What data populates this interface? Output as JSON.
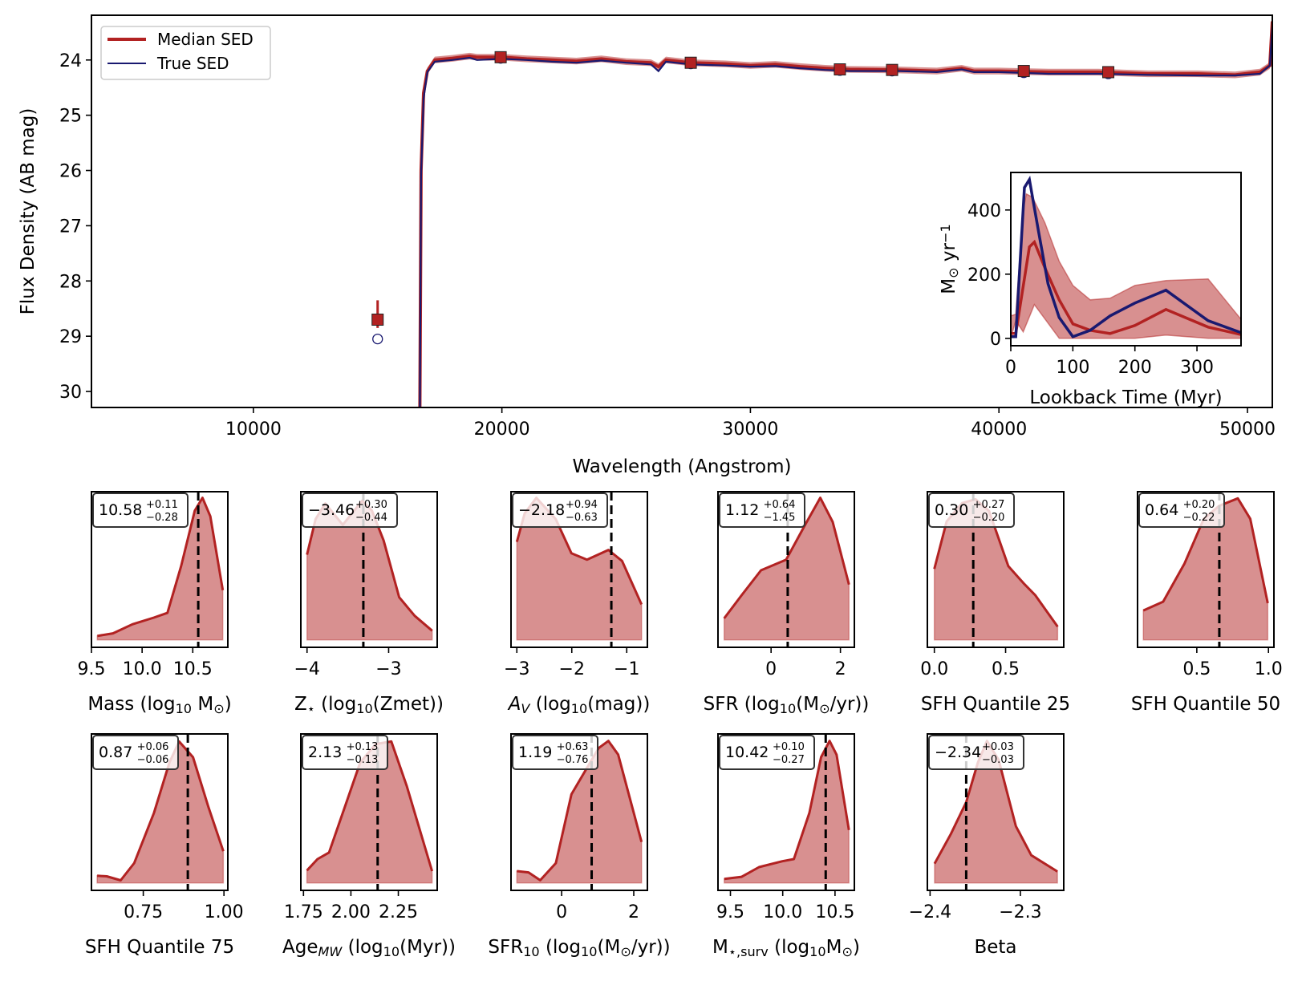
{
  "colors": {
    "median": "#b22222",
    "median_fill": "#b22222",
    "true": "#191970",
    "truth_line": "#000000"
  },
  "chart_data": [
    {
      "type": "line",
      "id": "sed",
      "xlabel": "Wavelength (Angstrom)",
      "ylabel": "Flux Density (AB mag)",
      "xlim": [
        3485,
        51000
      ],
      "ylim": [
        23.19,
        30.29
      ],
      "y_inverted": true,
      "xticks": [
        10000,
        20000,
        30000,
        40000,
        50000
      ],
      "xticklabels": [
        "10000",
        "20000",
        "30000",
        "40000",
        "50000"
      ],
      "yticks": [
        24,
        25,
        26,
        27,
        28,
        29,
        30
      ],
      "yticklabels": [
        "24",
        "25",
        "26",
        "27",
        "28",
        "29",
        "30"
      ],
      "grid": false,
      "legend": {
        "placement": "top-left",
        "entries": [
          "Median SED",
          "True SED"
        ]
      },
      "series": [
        {
          "name": "Median SED",
          "band_halfwidth": 0.06,
          "x": [
            16700,
            16750,
            16850,
            17000,
            17300,
            18000,
            18700,
            19000,
            20000,
            21000,
            22000,
            23000,
            24000,
            25000,
            26000,
            26300,
            26600,
            27600,
            29000,
            30000,
            31000,
            32000,
            33000,
            34000,
            36000,
            37500,
            38500,
            39000,
            40000,
            42000,
            44000,
            46000,
            48000,
            49500,
            50500,
            50900,
            51000
          ],
          "y": [
            30.3,
            26.0,
            24.6,
            24.2,
            24.0,
            23.97,
            23.93,
            23.95,
            23.95,
            23.98,
            24.0,
            24.02,
            23.98,
            24.03,
            24.05,
            24.12,
            24.0,
            24.05,
            24.07,
            24.1,
            24.08,
            24.12,
            24.15,
            24.17,
            24.18,
            24.2,
            24.15,
            24.2,
            24.2,
            24.22,
            24.22,
            24.25,
            24.25,
            24.27,
            24.22,
            24.1,
            23.3
          ]
        },
        {
          "name": "True SED",
          "x": [
            16700,
            16750,
            16850,
            17000,
            17300,
            18000,
            18700,
            19000,
            20000,
            21000,
            22000,
            23000,
            24000,
            25000,
            26000,
            26300,
            26600,
            27600,
            29000,
            30000,
            31000,
            32000,
            33000,
            34000,
            36000,
            37500,
            38500,
            39000,
            40000,
            42000,
            44000,
            46000,
            48000,
            49500,
            50500,
            50900,
            51000
          ],
          "y": [
            30.3,
            26.1,
            24.7,
            24.22,
            24.03,
            24.0,
            23.96,
            24.0,
            23.98,
            24.0,
            24.03,
            24.05,
            24.01,
            24.05,
            24.08,
            24.2,
            24.03,
            24.08,
            24.1,
            24.12,
            24.11,
            24.15,
            24.18,
            24.2,
            24.2,
            24.22,
            24.17,
            24.22,
            24.22,
            24.25,
            24.25,
            24.27,
            24.28,
            24.28,
            24.25,
            24.1,
            23.4
          ]
        }
      ],
      "photometry_median": [
        {
          "x": 15000,
          "y": 28.7,
          "err_up": 0.35,
          "err_down": 0.15
        },
        {
          "x": 19950,
          "y": 23.95
        },
        {
          "x": 27600,
          "y": 24.05
        },
        {
          "x": 33600,
          "y": 24.17
        },
        {
          "x": 35700,
          "y": 24.18
        },
        {
          "x": 41000,
          "y": 24.2
        },
        {
          "x": 44400,
          "y": 24.22
        }
      ],
      "photometry_true": [
        {
          "x": 15000,
          "y": 29.05
        },
        {
          "x": 19950,
          "y": 23.97
        },
        {
          "x": 27600,
          "y": 24.07
        },
        {
          "x": 33600,
          "y": 24.19
        },
        {
          "x": 35700,
          "y": 24.2
        },
        {
          "x": 41000,
          "y": 24.23
        },
        {
          "x": 44400,
          "y": 24.25
        }
      ]
    },
    {
      "type": "area",
      "id": "sfh-inset",
      "xlabel": "Lookback Time (Myr)",
      "ylabel_parts": [
        {
          "t": "M",
          "s": ""
        },
        {
          "t": "⊙",
          "s": "sub"
        },
        {
          "t": " yr",
          "s": ""
        },
        {
          "t": "−1",
          "s": "sup"
        }
      ],
      "xlim": [
        0,
        371
      ],
      "ylim": [
        -23,
        517
      ],
      "xticks": [
        0,
        100,
        200,
        300
      ],
      "xticklabels": [
        "0",
        "100",
        "200",
        "300"
      ],
      "yticks": [
        0,
        200,
        400
      ],
      "yticklabels": [
        "0",
        "200",
        "400"
      ],
      "band_x": [
        0,
        8,
        20,
        25,
        35,
        55,
        78,
        100,
        128,
        160,
        200,
        250,
        318,
        375
      ],
      "band_upper": [
        70,
        75,
        400,
        450,
        440,
        360,
        240,
        165,
        120,
        125,
        165,
        180,
        185,
        50
      ],
      "band_lower_x": [
        0,
        8,
        20,
        38,
        78,
        160,
        200,
        250,
        318,
        375
      ],
      "band_lower": [
        0,
        55,
        20,
        105,
        0,
        0,
        0,
        10,
        0,
        0
      ],
      "median": {
        "x": [
          0,
          8,
          30,
          38,
          55,
          78,
          100,
          128,
          160,
          200,
          250,
          318,
          375
        ],
        "y": [
          15,
          15,
          285,
          300,
          220,
          120,
          45,
          25,
          15,
          40,
          90,
          35,
          10
        ]
      },
      "true": {
        "x": [
          0,
          8,
          22,
          30,
          45,
          60,
          78,
          100,
          128,
          160,
          200,
          250,
          318,
          375
        ],
        "y": [
          5,
          5,
          470,
          495,
          330,
          170,
          65,
          5,
          25,
          70,
          110,
          150,
          55,
          15
        ]
      }
    },
    {
      "type": "area",
      "id": "mass",
      "xlabel_parts": [
        {
          "t": "Mass (log",
          "s": ""
        },
        {
          "t": "10",
          "s": "sub"
        },
        {
          "t": " M",
          "s": ""
        },
        {
          "t": "⊙",
          "s": "sub"
        },
        {
          "t": ")",
          "s": ""
        }
      ],
      "xlim": [
        9.5,
        10.846
      ],
      "xticks": [
        9.5,
        10.0,
        10.5
      ],
      "xticklabels": [
        "9.5",
        "10.0",
        "10.5"
      ],
      "truth": 10.554,
      "median": "10.58",
      "plus": "+0.11",
      "minus": "−0.28",
      "x": [
        9.558,
        9.712,
        9.904,
        10.115,
        10.25,
        10.385,
        10.52,
        10.596,
        10.673,
        10.796
      ],
      "y": [
        0.028,
        0.046,
        0.11,
        0.157,
        0.19,
        0.52,
        0.91,
        1.0,
        0.87,
        0.35
      ]
    },
    {
      "type": "area",
      "id": "zstar",
      "xlabel_parts": [
        {
          "t": "Z",
          "s": ""
        },
        {
          "t": "⋆",
          "s": "sub"
        },
        {
          "t": "  (log",
          "s": ""
        },
        {
          "t": "10",
          "s": "sub"
        },
        {
          "t": "(Zmet))",
          "s": ""
        }
      ],
      "xlim": [
        -4.076,
        -2.405
      ],
      "xticks": [
        -4,
        -3
      ],
      "xticklabels": [
        "−4",
        "−3"
      ],
      "truth": -3.31,
      "median": "−3.46",
      "plus": "+0.30",
      "minus": "−0.44",
      "x": [
        -4,
        -3.895,
        -3.776,
        -3.562,
        -3.324,
        -3.205,
        -3.062,
        -2.871,
        -2.681,
        -2.467
      ],
      "y": [
        0.6,
        0.85,
        0.96,
        0.81,
        0.98,
        0.91,
        0.7,
        0.3,
        0.17,
        0.065
      ]
    },
    {
      "type": "area",
      "id": "av",
      "xlabel_parts": [
        {
          "t": "A",
          "s": "i"
        },
        {
          "t": "V",
          "s": "isub"
        },
        {
          "t": " (log",
          "s": ""
        },
        {
          "t": "10",
          "s": "sub"
        },
        {
          "t": "(mag))",
          "s": ""
        }
      ],
      "xlim": [
        -3.106,
        -0.624
      ],
      "xticks": [
        -3,
        -2,
        -1
      ],
      "xticklabels": [
        "−3",
        "−2",
        "−1"
      ],
      "truth": -1.28,
      "median": "−2.18",
      "plus": "+0.94",
      "minus": "−0.63",
      "x": [
        -3,
        -2.858,
        -2.645,
        -2.291,
        -2.007,
        -1.723,
        -1.333,
        -1.085,
        -0.73
      ],
      "y": [
        0.69,
        0.89,
        1.0,
        0.85,
        0.61,
        0.565,
        0.633,
        0.556,
        0.25
      ]
    },
    {
      "type": "area",
      "id": "sfr",
      "xlabel_parts": [
        {
          "t": "SFR (log",
          "s": ""
        },
        {
          "t": "10",
          "s": "sub"
        },
        {
          "t": "(M",
          "s": ""
        },
        {
          "t": "⊙",
          "s": "sub"
        },
        {
          "t": "/yr))",
          "s": ""
        }
      ],
      "xlim": [
        -1.531,
        2.402
      ],
      "xticks": [
        0,
        2
      ],
      "xticklabels": [
        "0",
        "2"
      ],
      "truth": 0.48,
      "median": "1.12",
      "plus": "+0.64",
      "minus": "−1.45",
      "x": [
        -1.352,
        -0.849,
        -0.291,
        0.436,
        0.994,
        1.419,
        1.777,
        2.246
      ],
      "y": [
        0.152,
        0.315,
        0.49,
        0.565,
        0.815,
        1.0,
        0.83,
        0.39
      ]
    },
    {
      "type": "area",
      "id": "sfhq25",
      "xlabel_parts": [
        {
          "t": "SFH Quantile 25",
          "s": ""
        }
      ],
      "xlim": [
        -0.049,
        0.908
      ],
      "xticks": [
        0.0,
        0.5
      ],
      "xticklabels": [
        "0.0",
        "0.5"
      ],
      "truth": 0.273,
      "median": "0.30",
      "plus": "+0.27",
      "minus": "−0.20",
      "x": [
        0,
        0.086,
        0.195,
        0.289,
        0.384,
        0.519,
        0.627,
        0.708,
        0.865
      ],
      "y": [
        0.5,
        0.833,
        0.963,
        0.99,
        0.907,
        0.519,
        0.398,
        0.315,
        0.093
      ]
    },
    {
      "type": "area",
      "id": "sfhq50",
      "xlabel_parts": [
        {
          "t": "SFH Quantile 50",
          "s": ""
        }
      ],
      "xlim": [
        0.0865,
        1.038
      ],
      "xticks": [
        0.5,
        1.0
      ],
      "xticklabels": [
        "0.5",
        "1.0"
      ],
      "truth": 0.657,
      "median": "0.64",
      "plus": "+0.20",
      "minus": "−0.22",
      "x": [
        0.127,
        0.265,
        0.414,
        0.549,
        0.657,
        0.786,
        0.873,
        0.995
      ],
      "y": [
        0.207,
        0.269,
        0.537,
        0.852,
        0.944,
        0.996,
        0.852,
        0.259
      ]
    },
    {
      "type": "area",
      "id": "sfhq75",
      "xlabel_parts": [
        {
          "t": "SFH Quantile 75",
          "s": ""
        }
      ],
      "xlim": [
        0.5894,
        1.012
      ],
      "xticks": [
        0.75,
        1.0
      ],
      "xticklabels": [
        "0.75",
        "1.00"
      ],
      "truth": 0.888,
      "median": "0.87",
      "plus": "+0.06",
      "minus": "−0.06",
      "x": [
        0.607,
        0.637,
        0.68,
        0.722,
        0.783,
        0.831,
        0.861,
        0.904,
        0.952,
        0.998
      ],
      "y": [
        0.05,
        0.046,
        0.018,
        0.139,
        0.49,
        0.843,
        0.99,
        0.88,
        0.53,
        0.222
      ]
    },
    {
      "type": "area",
      "id": "agemw",
      "xlabel_parts": [
        {
          "t": "Age",
          "s": ""
        },
        {
          "t": "MW",
          "s": "isub"
        },
        {
          "t": " (log",
          "s": ""
        },
        {
          "t": "10",
          "s": "sub"
        },
        {
          "t": "(Myr))",
          "s": ""
        }
      ],
      "xlim": [
        1.736,
        2.455
      ],
      "xticks": [
        1.75,
        2.0,
        2.25
      ],
      "xticklabels": [
        "1.75",
        "2.00",
        "2.25"
      ],
      "truth": 2.141,
      "median": "2.13",
      "plus": "+0.13",
      "minus": "−0.13",
      "x": [
        1.768,
        1.824,
        1.885,
        1.967,
        2.049,
        2.131,
        2.213,
        2.295,
        2.428
      ],
      "y": [
        0.087,
        0.167,
        0.213,
        0.528,
        0.843,
        0.972,
        0.99,
        0.676,
        0.083
      ]
    },
    {
      "type": "area",
      "id": "sfr10",
      "xlabel_parts": [
        {
          "t": "SFR",
          "s": ""
        },
        {
          "t": "10",
          "s": "sub"
        },
        {
          "t": " (log",
          "s": ""
        },
        {
          "t": "10",
          "s": "sub"
        },
        {
          "t": "(M",
          "s": ""
        },
        {
          "t": "⊙",
          "s": "sub"
        },
        {
          "t": "/yr))",
          "s": ""
        }
      ],
      "xlim": [
        -1.405,
        2.378
      ],
      "xticks": [
        0,
        2
      ],
      "xticklabels": [
        "0",
        "2"
      ],
      "truth": 0.832,
      "median": "1.19",
      "plus": "+0.63",
      "minus": "−0.76",
      "x": [
        -1.243,
        -0.919,
        -0.595,
        -0.162,
        0.27,
        0.703,
        1.027,
        1.297,
        1.568,
        2.216
      ],
      "y": [
        0.083,
        0.074,
        0.019,
        0.139,
        0.62,
        0.806,
        0.944,
        0.994,
        0.898,
        0.287
      ]
    },
    {
      "type": "area",
      "id": "msurv",
      "xlabel_parts": [
        {
          "t": "M",
          "s": ""
        },
        {
          "t": "⋆,surv",
          "s": "sub"
        },
        {
          "t": " (log",
          "s": ""
        },
        {
          "t": "10",
          "s": "sub"
        },
        {
          "t": "M",
          "s": ""
        },
        {
          "t": "⊙",
          "s": "sub"
        },
        {
          "t": ")",
          "s": ""
        }
      ],
      "xlim": [
        9.381,
        10.685
      ],
      "xticks": [
        9.5,
        10.0,
        10.5
      ],
      "xticklabels": [
        "9.5",
        "10.0",
        "10.5"
      ],
      "truth": 10.411,
      "median": "10.42",
      "plus": "+0.10",
      "minus": "−0.27",
      "x": [
        9.441,
        9.607,
        9.774,
        9.996,
        10.107,
        10.255,
        10.367,
        10.448,
        10.515,
        10.633
      ],
      "y": [
        0.028,
        0.043,
        0.111,
        0.152,
        0.167,
        0.49,
        0.88,
        0.994,
        0.898,
        0.37
      ]
    },
    {
      "type": "area",
      "id": "beta",
      "xlabel_parts": [
        {
          "t": "Beta",
          "s": ""
        }
      ],
      "xlim": [
        -2.403,
        -2.252
      ],
      "xticks": [
        -2.4,
        -2.3
      ],
      "xticklabels": [
        "−2.4",
        "−2.3"
      ],
      "truth": -2.36,
      "median": "−2.34",
      "plus": "+0.03",
      "minus": "−0.03",
      "x": [
        -2.395,
        -2.377,
        -2.36,
        -2.347,
        -2.337,
        -2.324,
        -2.305,
        -2.288,
        -2.259
      ],
      "y": [
        0.135,
        0.343,
        0.565,
        0.843,
        0.994,
        0.861,
        0.398,
        0.194,
        0.08
      ]
    }
  ]
}
